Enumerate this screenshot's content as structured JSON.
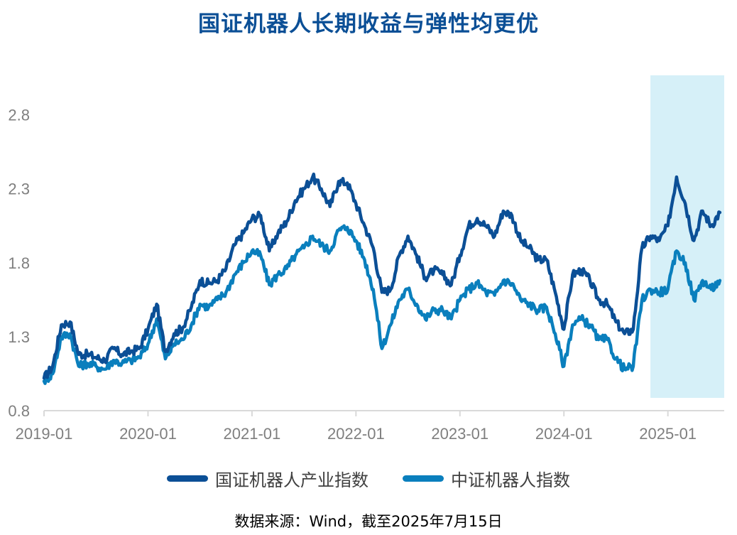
{
  "chart_data": {
    "type": "line",
    "title": "国证机器人长期收益与弹性均更优",
    "xlabel": "",
    "ylabel": "",
    "ylim": [
      0.8,
      3.0
    ],
    "xlim": [
      "2019-01",
      "2025-07"
    ],
    "yticks": [
      "0.8",
      "1.3",
      "1.8",
      "2.3",
      "2.8"
    ],
    "xticks": [
      "2019-01",
      "2020-01",
      "2021-01",
      "2022-01",
      "2023-01",
      "2024-01",
      "2025-01"
    ],
    "grid": false,
    "legend": "bottom",
    "highlight": {
      "x_start": "2024-10",
      "x_end": "2025-07",
      "color": "#d6f0f8"
    },
    "series": [
      {
        "name": "国证机器人产业指数",
        "color": "#0b4f96",
        "points": [
          [
            "2019-01",
            1.02
          ],
          [
            "2019-02",
            1.1
          ],
          [
            "2019-03",
            1.38
          ],
          [
            "2019-04",
            1.4
          ],
          [
            "2019-05",
            1.18
          ],
          [
            "2019-06",
            1.18
          ],
          [
            "2019-07",
            1.16
          ],
          [
            "2019-08",
            1.14
          ],
          [
            "2019-09",
            1.22
          ],
          [
            "2019-10",
            1.18
          ],
          [
            "2019-11",
            1.2
          ],
          [
            "2019-12",
            1.22
          ],
          [
            "2020-01",
            1.35
          ],
          [
            "2020-02",
            1.52
          ],
          [
            "2020-03",
            1.2
          ],
          [
            "2020-04",
            1.32
          ],
          [
            "2020-05",
            1.36
          ],
          [
            "2020-06",
            1.5
          ],
          [
            "2020-07",
            1.68
          ],
          [
            "2020-08",
            1.66
          ],
          [
            "2020-09",
            1.68
          ],
          [
            "2020-10",
            1.76
          ],
          [
            "2020-11",
            1.92
          ],
          [
            "2020-12",
            2.0
          ],
          [
            "2021-01",
            2.1
          ],
          [
            "2021-02",
            2.12
          ],
          [
            "2021-03",
            1.88
          ],
          [
            "2021-04",
            2.0
          ],
          [
            "2021-05",
            2.08
          ],
          [
            "2021-06",
            2.22
          ],
          [
            "2021-07",
            2.3
          ],
          [
            "2021-08",
            2.38
          ],
          [
            "2021-09",
            2.3
          ],
          [
            "2021-10",
            2.18
          ],
          [
            "2021-11",
            2.35
          ],
          [
            "2021-12",
            2.34
          ],
          [
            "2022-01",
            2.2
          ],
          [
            "2022-02",
            2.05
          ],
          [
            "2022-03",
            1.9
          ],
          [
            "2022-04",
            1.6
          ],
          [
            "2022-05",
            1.62
          ],
          [
            "2022-06",
            1.85
          ],
          [
            "2022-07",
            1.98
          ],
          [
            "2022-08",
            1.85
          ],
          [
            "2022-09",
            1.7
          ],
          [
            "2022-10",
            1.75
          ],
          [
            "2022-11",
            1.72
          ],
          [
            "2022-12",
            1.65
          ],
          [
            "2023-01",
            1.85
          ],
          [
            "2023-02",
            2.05
          ],
          [
            "2023-03",
            2.1
          ],
          [
            "2023-04",
            2.05
          ],
          [
            "2023-05",
            1.98
          ],
          [
            "2023-06",
            2.15
          ],
          [
            "2023-07",
            2.12
          ],
          [
            "2023-08",
            1.95
          ],
          [
            "2023-09",
            1.9
          ],
          [
            "2023-10",
            1.82
          ],
          [
            "2023-11",
            1.82
          ],
          [
            "2023-12",
            1.6
          ],
          [
            "2024-01",
            1.35
          ],
          [
            "2024-02",
            1.72
          ],
          [
            "2024-03",
            1.75
          ],
          [
            "2024-04",
            1.68
          ],
          [
            "2024-05",
            1.55
          ],
          [
            "2024-06",
            1.52
          ],
          [
            "2024-07",
            1.4
          ],
          [
            "2024-08",
            1.32
          ],
          [
            "2024-09",
            1.35
          ],
          [
            "2024-10",
            1.9
          ],
          [
            "2024-11",
            1.98
          ],
          [
            "2024-12",
            1.95
          ],
          [
            "2025-01",
            2.05
          ],
          [
            "2025-02",
            2.38
          ],
          [
            "2025-03",
            2.2
          ],
          [
            "2025-04",
            1.95
          ],
          [
            "2025-05",
            2.15
          ],
          [
            "2025-06",
            2.05
          ],
          [
            "2025-07",
            2.14
          ]
        ]
      },
      {
        "name": "中证机器人指数",
        "color": "#0a7fbd",
        "points": [
          [
            "2019-01",
            1.0
          ],
          [
            "2019-02",
            1.05
          ],
          [
            "2019-03",
            1.3
          ],
          [
            "2019-04",
            1.32
          ],
          [
            "2019-05",
            1.1
          ],
          [
            "2019-06",
            1.12
          ],
          [
            "2019-07",
            1.1
          ],
          [
            "2019-08",
            1.08
          ],
          [
            "2019-09",
            1.14
          ],
          [
            "2019-10",
            1.12
          ],
          [
            "2019-11",
            1.14
          ],
          [
            "2019-12",
            1.16
          ],
          [
            "2020-01",
            1.25
          ],
          [
            "2020-02",
            1.42
          ],
          [
            "2020-03",
            1.15
          ],
          [
            "2020-04",
            1.25
          ],
          [
            "2020-05",
            1.28
          ],
          [
            "2020-06",
            1.38
          ],
          [
            "2020-07",
            1.52
          ],
          [
            "2020-08",
            1.5
          ],
          [
            "2020-09",
            1.55
          ],
          [
            "2020-10",
            1.6
          ],
          [
            "2020-11",
            1.72
          ],
          [
            "2020-12",
            1.8
          ],
          [
            "2021-01",
            1.88
          ],
          [
            "2021-02",
            1.85
          ],
          [
            "2021-03",
            1.65
          ],
          [
            "2021-04",
            1.72
          ],
          [
            "2021-05",
            1.76
          ],
          [
            "2021-06",
            1.85
          ],
          [
            "2021-07",
            1.9
          ],
          [
            "2021-08",
            1.98
          ],
          [
            "2021-09",
            1.92
          ],
          [
            "2021-10",
            1.88
          ],
          [
            "2021-11",
            2.02
          ],
          [
            "2021-12",
            2.04
          ],
          [
            "2022-01",
            1.95
          ],
          [
            "2022-02",
            1.82
          ],
          [
            "2022-03",
            1.62
          ],
          [
            "2022-04",
            1.22
          ],
          [
            "2022-05",
            1.38
          ],
          [
            "2022-06",
            1.55
          ],
          [
            "2022-07",
            1.62
          ],
          [
            "2022-08",
            1.52
          ],
          [
            "2022-09",
            1.42
          ],
          [
            "2022-10",
            1.48
          ],
          [
            "2022-11",
            1.48
          ],
          [
            "2022-12",
            1.42
          ],
          [
            "2023-01",
            1.55
          ],
          [
            "2023-02",
            1.62
          ],
          [
            "2023-03",
            1.66
          ],
          [
            "2023-04",
            1.6
          ],
          [
            "2023-05",
            1.58
          ],
          [
            "2023-06",
            1.68
          ],
          [
            "2023-07",
            1.66
          ],
          [
            "2023-08",
            1.55
          ],
          [
            "2023-09",
            1.52
          ],
          [
            "2023-10",
            1.48
          ],
          [
            "2023-11",
            1.5
          ],
          [
            "2023-12",
            1.32
          ],
          [
            "2024-01",
            1.1
          ],
          [
            "2024-02",
            1.38
          ],
          [
            "2024-03",
            1.42
          ],
          [
            "2024-04",
            1.38
          ],
          [
            "2024-05",
            1.28
          ],
          [
            "2024-06",
            1.28
          ],
          [
            "2024-07",
            1.15
          ],
          [
            "2024-08",
            1.08
          ],
          [
            "2024-09",
            1.1
          ],
          [
            "2024-10",
            1.55
          ],
          [
            "2024-11",
            1.62
          ],
          [
            "2024-12",
            1.6
          ],
          [
            "2025-01",
            1.62
          ],
          [
            "2025-02",
            1.88
          ],
          [
            "2025-03",
            1.8
          ],
          [
            "2025-04",
            1.55
          ],
          [
            "2025-05",
            1.68
          ],
          [
            "2025-06",
            1.62
          ],
          [
            "2025-07",
            1.68
          ]
        ]
      }
    ]
  },
  "source_note": "数据来源：Wind，截至2025年7月15日"
}
